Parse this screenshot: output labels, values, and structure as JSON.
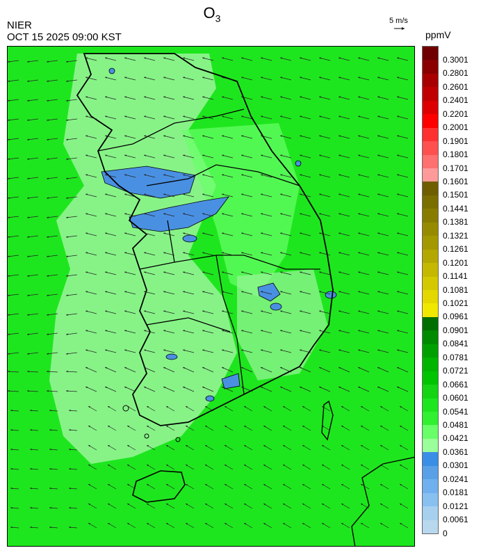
{
  "header": {
    "title_main": "O",
    "title_sub": "3",
    "agency": "NIER",
    "datetime": "OCT 15 2025 09:00 KST",
    "wind_scale_label": "5 m/s"
  },
  "legend": {
    "unit": "ppmV",
    "labels": [
      "0.3001",
      "0.2801",
      "0.2601",
      "0.2401",
      "0.2201",
      "0.2001",
      "0.1901",
      "0.1801",
      "0.1701",
      "0.1601",
      "0.1501",
      "0.1441",
      "0.1381",
      "0.1321",
      "0.1261",
      "0.1201",
      "0.1141",
      "0.1081",
      "0.1021",
      "0.0961",
      "0.0901",
      "0.0841",
      "0.0781",
      "0.0721",
      "0.0661",
      "0.0601",
      "0.0541",
      "0.0481",
      "0.0421",
      "0.0361",
      "0.0301",
      "0.0241",
      "0.0181",
      "0.0121",
      "0.0061",
      "0"
    ],
    "colors": [
      "#6e0000",
      "#8a0000",
      "#a80000",
      "#c00000",
      "#dc0000",
      "#ff0000",
      "#ff3030",
      "#ff5050",
      "#ff7070",
      "#ff9a9a",
      "#6e5e00",
      "#7a6e00",
      "#887c00",
      "#968a00",
      "#a49800",
      "#b4a800",
      "#c4b800",
      "#d4c800",
      "#e4d800",
      "#f0e800",
      "#006e00",
      "#008a00",
      "#00a000",
      "#00b400",
      "#00c400",
      "#14d414",
      "#1ee61e",
      "#30f030",
      "#68ff68",
      "#9aff9a",
      "#3a8ee6",
      "#5aa0e6",
      "#70b0ee",
      "#88c0f0",
      "#a6d0ee",
      "#b8d8ee"
    ]
  },
  "map_colors": {
    "background": "#1ee61e",
    "light_zone": "#9af59a",
    "blue_zone": "#4a90e2",
    "coastline": "#000000"
  }
}
